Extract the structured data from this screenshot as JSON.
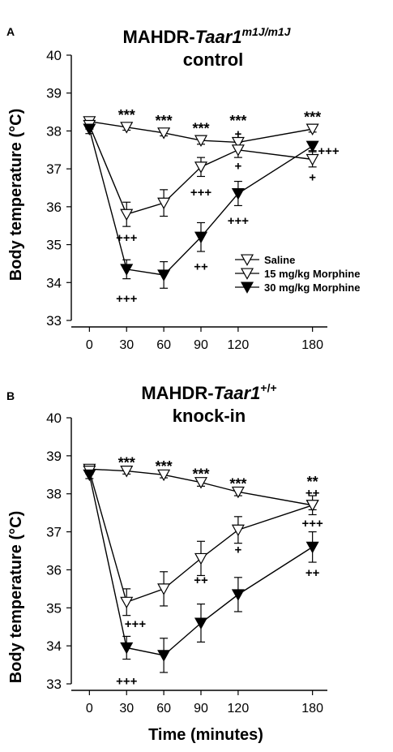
{
  "chart_data": [
    {
      "type": "line",
      "panel_letter": "A",
      "title_prefix": "MAHDR-",
      "title_italic": "Taar1",
      "title_super": "m1J/m1J",
      "subtitle": "control",
      "xlabel": "",
      "ylabel": "Body temperature (°C)",
      "x": [
        0,
        30,
        60,
        90,
        120,
        180
      ],
      "xlim": [
        -12,
        192
      ],
      "ylim": [
        33,
        40
      ],
      "yticks": [
        33,
        34,
        35,
        36,
        37,
        38,
        39,
        40
      ],
      "legend": {
        "placement": "lower-right"
      },
      "series": [
        {
          "name": "Saline",
          "marker": "open-triangle-down",
          "values": [
            38.25,
            38.1,
            37.95,
            37.75,
            37.7,
            38.05
          ],
          "errors": [
            0.08,
            0.08,
            0.08,
            0.1,
            0.1,
            0.08
          ]
        },
        {
          "name": "15 mg/kg Morphine",
          "marker": "open-triangle-down",
          "values": [
            38.15,
            35.8,
            36.1,
            37.05,
            37.5,
            37.25
          ],
          "errors": [
            0.1,
            0.32,
            0.35,
            0.25,
            0.2,
            0.2
          ]
        },
        {
          "name": "30 mg/kg Morphine",
          "marker": "filled-triangle-down",
          "values": [
            38.05,
            34.35,
            34.2,
            35.2,
            36.35,
            37.6
          ],
          "errors": [
            0.12,
            0.25,
            0.35,
            0.38,
            0.32,
            0.12
          ]
        }
      ],
      "annotations": [
        {
          "text": "***",
          "x": 30,
          "y": 38.5
        },
        {
          "text": "***",
          "x": 60,
          "y": 38.35
        },
        {
          "text": "***",
          "x": 90,
          "y": 38.15
        },
        {
          "text": "***",
          "x": 120,
          "y": 38.35
        },
        {
          "text": "+",
          "x": 120,
          "y": 37.95
        },
        {
          "text": "+",
          "x": 120,
          "y": 37.1
        },
        {
          "text": "***",
          "x": 180,
          "y": 38.45
        },
        {
          "text": "+++",
          "x": 193,
          "y": 37.5
        },
        {
          "text": "+",
          "x": 180,
          "y": 36.8
        },
        {
          "text": "+++",
          "x": 30,
          "y": 35.2
        },
        {
          "text": "+++",
          "x": 90,
          "y": 36.4
        },
        {
          "text": "+++",
          "x": 120,
          "y": 35.65
        },
        {
          "text": "++",
          "x": 90,
          "y": 34.45
        },
        {
          "text": "+++",
          "x": 30,
          "y": 33.6
        }
      ]
    },
    {
      "type": "line",
      "panel_letter": "B",
      "title_prefix": "MAHDR-",
      "title_italic": "Taar1",
      "title_super": "+/+",
      "subtitle": "knock-in",
      "xlabel": "Time (minutes)",
      "ylabel": "Body temperature (°C)",
      "x": [
        0,
        30,
        60,
        90,
        120,
        180
      ],
      "xlim": [
        -12,
        192
      ],
      "ylim": [
        33,
        40
      ],
      "yticks": [
        33,
        34,
        35,
        36,
        37,
        38,
        39,
        40
      ],
      "series": [
        {
          "name": "Saline",
          "marker": "open-triangle-down",
          "values": [
            38.65,
            38.6,
            38.5,
            38.3,
            38.05,
            37.7
          ],
          "errors": [
            0.05,
            0.08,
            0.08,
            0.1,
            0.1,
            0.12
          ]
        },
        {
          "name": "15 mg/kg Morphine",
          "marker": "open-triangle-down",
          "values": [
            38.6,
            35.15,
            35.5,
            36.3,
            37.05,
            37.7
          ],
          "errors": [
            0.08,
            0.35,
            0.45,
            0.45,
            0.35,
            0.25
          ]
        },
        {
          "name": "30 mg/kg Morphine",
          "marker": "filled-triangle-down",
          "values": [
            38.5,
            33.95,
            33.75,
            34.6,
            35.35,
            36.6
          ],
          "errors": [
            0.1,
            0.3,
            0.45,
            0.5,
            0.45,
            0.4
          ]
        }
      ],
      "annotations": [
        {
          "text": "***",
          "x": 30,
          "y": 38.9
        },
        {
          "text": "***",
          "x": 60,
          "y": 38.8
        },
        {
          "text": "***",
          "x": 90,
          "y": 38.6
        },
        {
          "text": "***",
          "x": 120,
          "y": 38.35
        },
        {
          "text": "**",
          "x": 180,
          "y": 38.4
        },
        {
          "text": "++",
          "x": 180,
          "y": 38.05
        },
        {
          "text": "+++",
          "x": 180,
          "y": 37.25
        },
        {
          "text": "+",
          "x": 120,
          "y": 36.55
        },
        {
          "text": "++",
          "x": 90,
          "y": 35.75
        },
        {
          "text": "++",
          "x": 180,
          "y": 35.95
        },
        {
          "text": "+++",
          "x": 37,
          "y": 34.6
        },
        {
          "text": "+++",
          "x": 30,
          "y": 33.1
        }
      ]
    }
  ]
}
